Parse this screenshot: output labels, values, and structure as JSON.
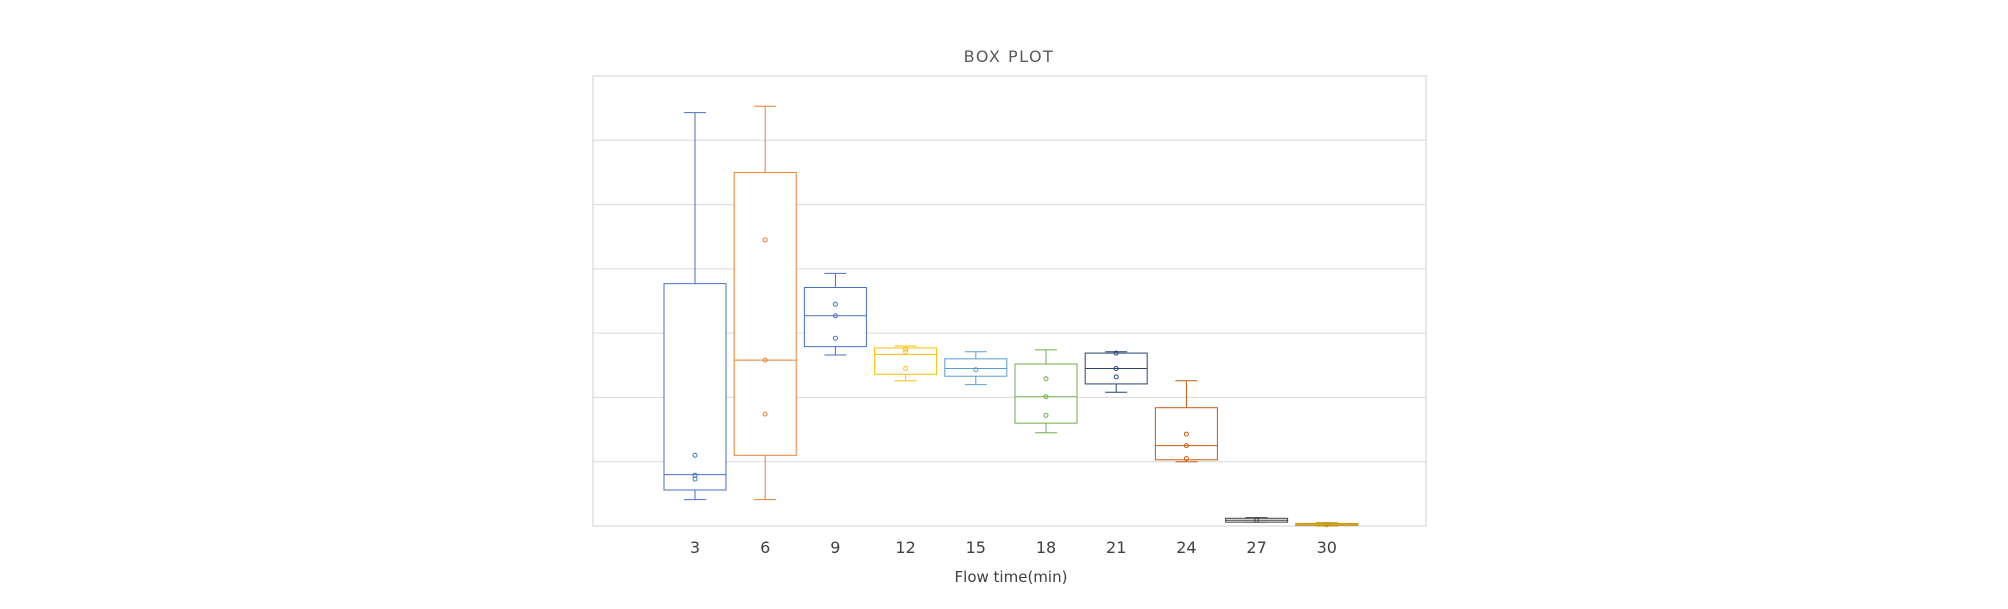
{
  "chart_data": {
    "type": "box",
    "title": "BOX PLOT",
    "xlabel": "Flow time(min)",
    "ylabel": "",
    "y_axis_labels_visible": false,
    "ylim": [
      0,
      7
    ],
    "grid": true,
    "legend": "none",
    "categories": [
      "3",
      "6",
      "9",
      "12",
      "15",
      "18",
      "21",
      "24",
      "27",
      "30"
    ],
    "boxes": [
      {
        "category": "3",
        "color": "#4472C4",
        "min": 0.41,
        "q1": 0.56,
        "median": 0.8,
        "q3": 3.77,
        "max": 6.43,
        "points": [
          0.73,
          0.79,
          1.1
        ]
      },
      {
        "category": "6",
        "color": "#ED7D31",
        "min": 0.41,
        "q1": 1.1,
        "median": 2.58,
        "q3": 5.5,
        "max": 6.53,
        "points": [
          1.74,
          2.58,
          4.45
        ]
      },
      {
        "category": "9",
        "color": "#4472C4",
        "min": 2.66,
        "q1": 2.79,
        "median": 3.27,
        "q3": 3.71,
        "max": 3.93,
        "points": [
          2.92,
          3.27,
          3.45
        ]
      },
      {
        "category": "12",
        "color": "#FFC000",
        "min": 2.26,
        "q1": 2.36,
        "median": 2.67,
        "q3": 2.77,
        "max": 2.8,
        "points": [
          2.45,
          2.71,
          2.75
        ]
      },
      {
        "category": "15",
        "color": "#5B9BD5",
        "min": 2.2,
        "q1": 2.33,
        "median": 2.45,
        "q3": 2.6,
        "max": 2.71,
        "points": [
          2.43
        ]
      },
      {
        "category": "18",
        "color": "#70AD47",
        "min": 1.45,
        "q1": 1.6,
        "median": 2.01,
        "q3": 2.52,
        "max": 2.74,
        "points": [
          1.72,
          2.01,
          2.29
        ]
      },
      {
        "category": "21",
        "color": "#264478",
        "min": 2.08,
        "q1": 2.21,
        "median": 2.45,
        "q3": 2.69,
        "max": 2.71,
        "points": [
          2.32,
          2.45,
          2.69
        ]
      },
      {
        "category": "24",
        "color": "#C55A11",
        "min": 1.0,
        "q1": 1.03,
        "median": 1.25,
        "q3": 1.84,
        "max": 2.26,
        "points": [
          1.05,
          1.25,
          1.43
        ]
      },
      {
        "category": "27",
        "color": "#404040",
        "min": 0.06,
        "q1": 0.06,
        "median": 0.09,
        "q3": 0.12,
        "max": 0.13,
        "points": [
          0.09
        ]
      },
      {
        "category": "30",
        "color": "#BF9000",
        "min": 0.0,
        "q1": 0.01,
        "median": 0.02,
        "q3": 0.04,
        "max": 0.05,
        "points": [
          0.02
        ]
      }
    ]
  }
}
